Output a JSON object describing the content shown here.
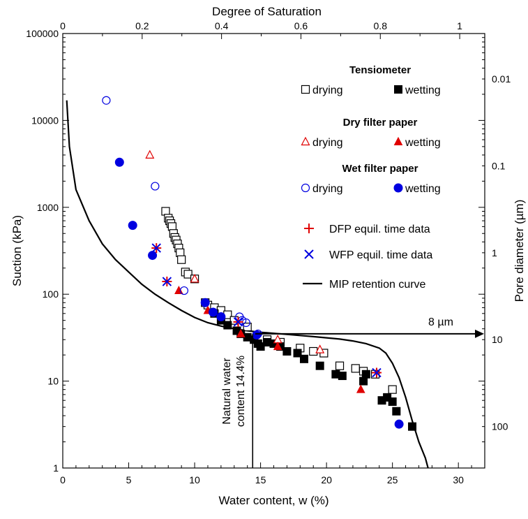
{
  "chart_data": {
    "type": "scatter",
    "x_axis": {
      "label": "Water content, w (%)",
      "range": [
        0,
        32
      ],
      "ticks": [
        "0",
        "5",
        "10",
        "15",
        "20",
        "25",
        "30"
      ],
      "tick_values": [
        0,
        5,
        10,
        15,
        20,
        25,
        30
      ]
    },
    "y_axis": {
      "label": "Suction (kPa)",
      "scale": "log",
      "range": [
        1,
        100000
      ],
      "ticks": [
        "1",
        "10",
        "100",
        "1000",
        "10000",
        "100000"
      ],
      "tick_values": [
        1,
        10,
        100,
        1000,
        10000,
        100000
      ]
    },
    "top_axis": {
      "label": "Degree of Saturation",
      "range": [
        0,
        1
      ],
      "ticks": [
        "0",
        "0.2",
        "0.4",
        "0.6",
        "0.8",
        "1"
      ],
      "tick_values": [
        0,
        0.2,
        0.4,
        0.6,
        0.8,
        1
      ]
    },
    "right_axis": {
      "label": "Pore diameter (µm)",
      "scale": "log",
      "ticks": [
        "0.01",
        "0.1",
        "1",
        "10",
        "100"
      ],
      "suction_at_tick": [
        30000,
        3000,
        300,
        30,
        3
      ]
    },
    "legend": {
      "groups": [
        {
          "title": "Tensiometer",
          "items": [
            {
              "label": "drying",
              "marker": "open-square"
            },
            {
              "label": "wetting",
              "marker": "filled-square"
            }
          ]
        },
        {
          "title": "Dry filter paper",
          "items": [
            {
              "label": "drying",
              "marker": "open-triangle"
            },
            {
              "label": "wetting",
              "marker": "filled-triangle"
            }
          ]
        },
        {
          "title": "Wet filter paper",
          "items": [
            {
              "label": "drying",
              "marker": "open-circle"
            },
            {
              "label": "wetting",
              "marker": "filled-circle"
            }
          ]
        }
      ],
      "extra": [
        {
          "label": "DFP equil. time data",
          "marker": "plus"
        },
        {
          "label": "WFP equil. time data",
          "marker": "cross"
        },
        {
          "label": "MIP retention curve",
          "marker": "line"
        }
      ],
      "placement": "top-right"
    },
    "annotations": {
      "arrow_label": "8 µm",
      "arrow_suction": 35,
      "natural_line_label_1": "Natural water",
      "natural_line_label_2": "content 14.4%",
      "natural_water_content": 14.4
    },
    "colors": {
      "tensiometer": "#000000",
      "dry_filter_paper": "#e00000",
      "wet_filter_paper": "#0000e0",
      "mip": "#000000"
    },
    "series": [
      {
        "name": "Tensiometer drying",
        "marker": "open-square",
        "color": "#000000",
        "points": [
          [
            7.8,
            900
          ],
          [
            8.0,
            750
          ],
          [
            8.1,
            700
          ],
          [
            8.2,
            650
          ],
          [
            8.3,
            600
          ],
          [
            8.4,
            500
          ],
          [
            8.5,
            450
          ],
          [
            8.6,
            420
          ],
          [
            8.7,
            380
          ],
          [
            8.8,
            340
          ],
          [
            8.9,
            300
          ],
          [
            9.0,
            250
          ],
          [
            9.3,
            180
          ],
          [
            9.5,
            170
          ],
          [
            10.0,
            150
          ],
          [
            10.8,
            80
          ],
          [
            11.0,
            75
          ],
          [
            11.5,
            70
          ],
          [
            12.0,
            65
          ],
          [
            12.5,
            58
          ],
          [
            13.0,
            50
          ],
          [
            14.0,
            42
          ],
          [
            15.5,
            30
          ],
          [
            16.5,
            28
          ],
          [
            18.0,
            24
          ],
          [
            19.0,
            22
          ],
          [
            19.8,
            21
          ],
          [
            21.0,
            15
          ],
          [
            22.2,
            14
          ],
          [
            22.8,
            13
          ],
          [
            23.7,
            12
          ],
          [
            25.0,
            8
          ]
        ]
      },
      {
        "name": "Tensiometer wetting",
        "marker": "filled-square",
        "color": "#000000",
        "points": [
          [
            11.5,
            60
          ],
          [
            12.0,
            50
          ],
          [
            12.5,
            44
          ],
          [
            13.2,
            38
          ],
          [
            13.5,
            35
          ],
          [
            14.0,
            32
          ],
          [
            14.5,
            30
          ],
          [
            14.8,
            27
          ],
          [
            15.0,
            25
          ],
          [
            15.5,
            28
          ],
          [
            16.0,
            27
          ],
          [
            16.5,
            25
          ],
          [
            17.0,
            22
          ],
          [
            17.8,
            21
          ],
          [
            18.3,
            18
          ],
          [
            19.5,
            15
          ],
          [
            20.7,
            12
          ],
          [
            21.2,
            11.5
          ],
          [
            22.8,
            10
          ],
          [
            23.0,
            12
          ],
          [
            24.2,
            6
          ],
          [
            24.6,
            6.5
          ],
          [
            25.0,
            5.8
          ],
          [
            25.3,
            4.5
          ],
          [
            26.5,
            3
          ]
        ]
      },
      {
        "name": "Dry filter paper drying",
        "marker": "open-triangle",
        "color": "#e00000",
        "points": [
          [
            6.6,
            4000
          ],
          [
            10.0,
            150
          ],
          [
            16.3,
            30
          ],
          [
            19.5,
            23
          ]
        ]
      },
      {
        "name": "Dry filter paper wetting",
        "marker": "filled-triangle",
        "color": "#e00000",
        "points": [
          [
            8.8,
            110
          ],
          [
            11.0,
            65
          ],
          [
            13.5,
            35
          ],
          [
            16.3,
            25
          ],
          [
            22.6,
            8
          ]
        ]
      },
      {
        "name": "Wet filter paper drying",
        "marker": "open-circle",
        "color": "#0000e0",
        "points": [
          [
            3.3,
            17000
          ],
          [
            7.0,
            1750
          ],
          [
            9.2,
            110
          ],
          [
            13.4,
            55
          ],
          [
            13.6,
            50
          ],
          [
            13.9,
            47
          ],
          [
            14.8,
            35
          ]
        ]
      },
      {
        "name": "Wet filter paper wetting",
        "marker": "filled-circle",
        "color": "#0000e0",
        "points": [
          [
            4.3,
            3300
          ],
          [
            5.3,
            620
          ],
          [
            6.8,
            280
          ],
          [
            10.8,
            80
          ],
          [
            11.4,
            62
          ],
          [
            12.0,
            55
          ],
          [
            14.7,
            34
          ],
          [
            25.5,
            3.2
          ]
        ]
      },
      {
        "name": "DFP equil. time data",
        "marker": "plus",
        "color": "#e00000",
        "points": [
          [
            7.1,
            340
          ],
          [
            7.9,
            140
          ],
          [
            13.3,
            48
          ],
          [
            23.8,
            12.5
          ]
        ]
      },
      {
        "name": "WFP equil. time data",
        "marker": "cross",
        "color": "#0000e0",
        "points": [
          [
            7.1,
            340
          ],
          [
            7.9,
            140
          ],
          [
            13.3,
            48
          ],
          [
            23.8,
            12.5
          ]
        ]
      },
      {
        "name": "MIP retention curve",
        "marker": "line",
        "color": "#000000",
        "points": [
          [
            0.3,
            17000
          ],
          [
            0.5,
            5000
          ],
          [
            1.0,
            1600
          ],
          [
            2.0,
            700
          ],
          [
            3.0,
            380
          ],
          [
            4.0,
            250
          ],
          [
            5.0,
            180
          ],
          [
            6.0,
            130
          ],
          [
            7.0,
            100
          ],
          [
            8.0,
            80
          ],
          [
            9.0,
            65
          ],
          [
            10.0,
            54
          ],
          [
            11.0,
            47
          ],
          [
            12.0,
            43
          ],
          [
            13.0,
            40
          ],
          [
            14.0,
            38
          ],
          [
            15.0,
            36.5
          ],
          [
            16.0,
            35.5
          ],
          [
            17.0,
            34.5
          ],
          [
            18.0,
            33.5
          ],
          [
            19.0,
            32.5
          ],
          [
            20.0,
            31.5
          ],
          [
            21.0,
            30.5
          ],
          [
            22.0,
            29
          ],
          [
            23.0,
            27
          ],
          [
            24.0,
            24
          ],
          [
            24.5,
            21
          ],
          [
            25.0,
            16
          ],
          [
            25.5,
            11
          ],
          [
            26.0,
            6.5
          ],
          [
            26.5,
            3.5
          ],
          [
            27.0,
            2.0
          ],
          [
            27.5,
            1.3
          ],
          [
            27.7,
            1.0
          ]
        ]
      }
    ]
  }
}
